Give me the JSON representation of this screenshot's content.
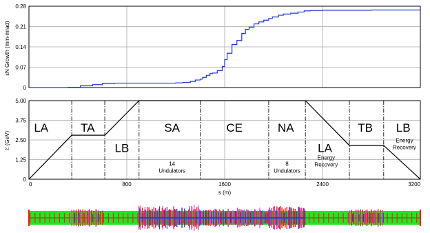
{
  "chart_data": [
    {
      "type": "line",
      "ylabel": "εN Growth (mm-mrad)",
      "xlim": [
        0,
        3200
      ],
      "ylim": [
        0,
        0.28
      ],
      "y_ticks": [
        "0",
        "0.07",
        "0.14",
        "0.21",
        "0.28"
      ],
      "grid": true,
      "line_color": "#1f33d6",
      "series": [
        {
          "x": [
            0,
            180,
            320,
            420,
            520,
            600,
            700,
            800,
            900,
            1000,
            1100,
            1200,
            1260,
            1320,
            1360,
            1400,
            1420,
            1450,
            1480,
            1500,
            1540,
            1580,
            1600,
            1620,
            1660,
            1700,
            1740,
            1770,
            1800,
            1840,
            1880,
            1920,
            1960,
            1990,
            2040,
            2080,
            2140,
            2200,
            2250,
            2300,
            2400,
            2600,
            2800,
            3000,
            3200
          ],
          "y": [
            0,
            0,
            0.001,
            0.006,
            0.01,
            0.014,
            0.015,
            0.015,
            0.015,
            0.015,
            0.015,
            0.016,
            0.018,
            0.021,
            0.026,
            0.029,
            0.035,
            0.042,
            0.048,
            0.05,
            0.058,
            0.072,
            0.096,
            0.118,
            0.148,
            0.162,
            0.186,
            0.2,
            0.208,
            0.219,
            0.226,
            0.232,
            0.238,
            0.243,
            0.249,
            0.253,
            0.256,
            0.26,
            0.264,
            0.265,
            0.266,
            0.266,
            0.267,
            0.267,
            0.267
          ]
        }
      ]
    },
    {
      "type": "line",
      "xlabel": "s (m)",
      "ylabel": "ℰ (GeV)",
      "xlim": [
        0,
        3200
      ],
      "ylim": [
        0,
        5
      ],
      "x_ticks": [
        "0",
        "800",
        "1600",
        "2400",
        "3200"
      ],
      "y_ticks": [
        "0",
        "1.25",
        "2.50",
        "3.75",
        "5.00"
      ],
      "grid": true,
      "line_color": "#000000",
      "series": [
        {
          "x": [
            0,
            350,
            620,
            900,
            2260,
            2620,
            2900,
            3200
          ],
          "y": [
            0,
            2.8,
            2.8,
            5,
            5,
            2.15,
            2.15,
            0
          ]
        }
      ],
      "boundaries": [
        350,
        620,
        900,
        1400,
        1960,
        2260,
        2620,
        2900
      ],
      "segments": [
        {
          "label": "LA",
          "x": 100,
          "y": 3.3
        },
        {
          "label": "TA",
          "x": 480,
          "y": 3.3
        },
        {
          "label": "LB",
          "x": 760,
          "y": 2.0
        },
        {
          "label": "SA",
          "x": 1170,
          "y": 3.3
        },
        {
          "label": "CE",
          "x": 1680,
          "y": 3.3
        },
        {
          "label": "NA",
          "x": 2100,
          "y": 3.3
        },
        {
          "label": "LA",
          "x": 2420,
          "y": 2.0
        },
        {
          "label": "TB",
          "x": 2750,
          "y": 3.3
        },
        {
          "label": "LB",
          "x": 3060,
          "y": 3.3
        }
      ],
      "annotations": [
        {
          "lines": [
            "14",
            "Undulators"
          ],
          "x": 1170,
          "y": 0.85
        },
        {
          "lines": [
            "8",
            "Undulators"
          ],
          "x": 2110,
          "y": 0.85
        },
        {
          "lines": [
            "Energy",
            "Recovery"
          ],
          "x": 2430,
          "y": 1.25
        },
        {
          "lines": [
            "Energy",
            "Recovery"
          ],
          "x": 3070,
          "y": 2.35
        }
      ]
    }
  ],
  "lattice_strip": {
    "background_color": "#22e622",
    "colors": {
      "red": "#ff1a1a",
      "blue": "#2b3bd8",
      "magenta": "#e63ce6"
    },
    "dense_regions": [
      {
        "name": "TA",
        "from": 350,
        "to": 620,
        "type": "light"
      },
      {
        "name": "SA",
        "from": 900,
        "to": 1400,
        "type": "heavy"
      },
      {
        "name": "CE",
        "from": 1400,
        "to": 1960,
        "type": "medium"
      },
      {
        "name": "NA",
        "from": 1960,
        "to": 2260,
        "type": "heavy"
      },
      {
        "name": "TB",
        "from": 2620,
        "to": 2900,
        "type": "light"
      }
    ]
  }
}
